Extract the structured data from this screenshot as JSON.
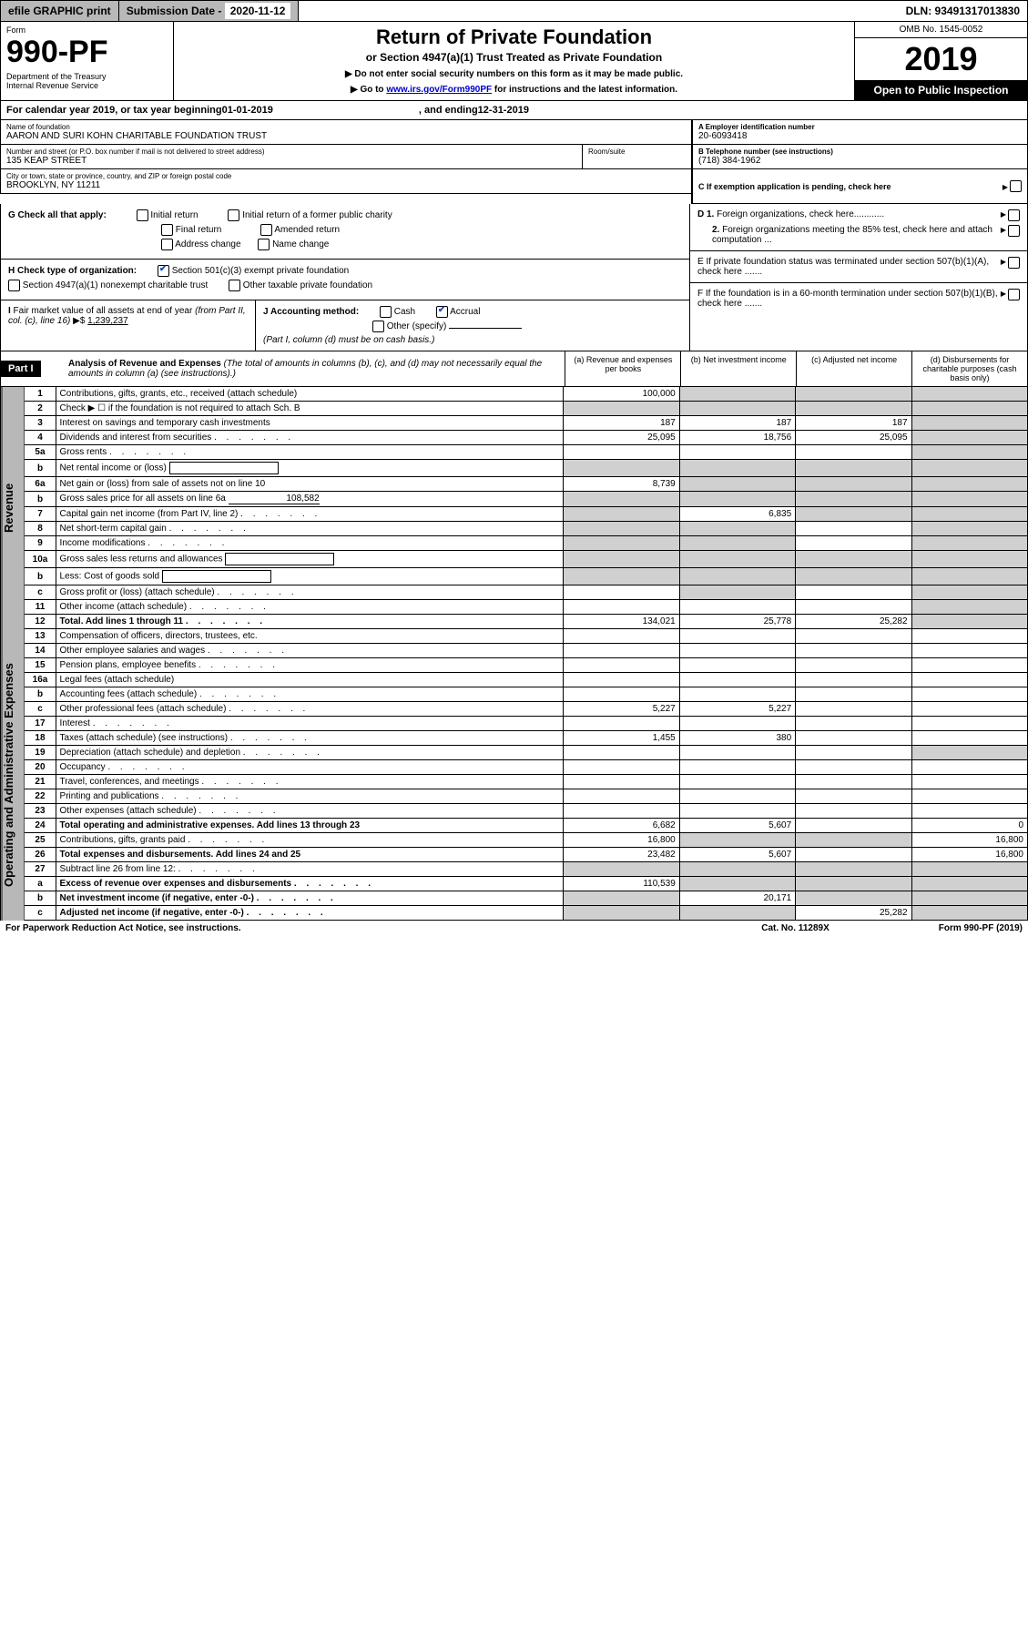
{
  "topbar": {
    "efile": "efile GRAPHIC print",
    "subdate_label": "Submission Date - ",
    "subdate": "2020-11-12",
    "dln": "DLN: 93491317013830"
  },
  "header": {
    "form_label": "Form",
    "form_number": "990-PF",
    "dept": "Department of the Treasury\nInternal Revenue Service",
    "title": "Return of Private Foundation",
    "subtitle": "or Section 4947(a)(1) Trust Treated as Private Foundation",
    "instr1": "▶ Do not enter social security numbers on this form as it may be made public.",
    "instr2_pre": "▶ Go to ",
    "instr2_link": "www.irs.gov/Form990PF",
    "instr2_post": " for instructions and the latest information.",
    "omb": "OMB No. 1545-0052",
    "year": "2019",
    "open": "Open to Public Inspection"
  },
  "calyear": {
    "pre": "For calendar year 2019, or tax year beginning ",
    "begin": "01-01-2019",
    "mid": ", and ending ",
    "end": "12-31-2019"
  },
  "ident": {
    "name_label": "Name of foundation",
    "name": "AARON AND SURI KOHN CHARITABLE FOUNDATION TRUST",
    "addr_label": "Number and street (or P.O. box number if mail is not delivered to street address)",
    "addr": "135 KEAP STREET",
    "room_label": "Room/suite",
    "city_label": "City or town, state or province, country, and ZIP or foreign postal code",
    "city": "BROOKLYN, NY  11211",
    "ein_label": "A Employer identification number",
    "ein": "20-6093418",
    "tel_label": "B Telephone number (see instructions)",
    "tel": "(718) 384-1962",
    "c_label": "C If exemption application is pending, check here"
  },
  "g": {
    "label": "G Check all that apply:",
    "initial": "Initial return",
    "initial_former": "Initial return of a former public charity",
    "final": "Final return",
    "amended": "Amended return",
    "addr_change": "Address change",
    "name_change": "Name change"
  },
  "h": {
    "label": "H Check type of organization:",
    "s501c3": "Section 501(c)(3) exempt private foundation",
    "s4947": "Section 4947(a)(1) nonexempt charitable trust",
    "other_tax": "Other taxable private foundation"
  },
  "d": {
    "d1": "D 1. Foreign organizations, check here............",
    "d2": "2. Foreign organizations meeting the 85% test, check here and attach computation ..."
  },
  "e": "E  If private foundation status was terminated under section 507(b)(1)(A), check here .......",
  "i": {
    "label": "I Fair market value of all assets at end of year (from Part II, col. (c), line 16) ▶$ ",
    "value": "1,239,237"
  },
  "j": {
    "label": "J Accounting method:",
    "cash": "Cash",
    "accrual": "Accrual",
    "other": "Other (specify)",
    "note": "(Part I, column (d) must be on cash basis.)"
  },
  "f": "F  If the foundation is in a 60-month termination under section 507(b)(1)(B), check here .......",
  "part1": {
    "label": "Part I",
    "title": "Analysis of Revenue and Expenses",
    "note": "(The total of amounts in columns (b), (c), and (d) may not necessarily equal the amounts in column (a) (see instructions).)",
    "col_a": "(a)   Revenue and expenses per books",
    "col_b": "(b)  Net investment income",
    "col_c": "(c)  Adjusted net income",
    "col_d": "(d)  Disbursements for charitable purposes (cash basis only)"
  },
  "side_rev": "Revenue",
  "side_exp": "Operating and Administrative Expenses",
  "rows": [
    {
      "ln": "1",
      "desc": "Contributions, gifts, grants, etc., received (attach schedule)",
      "a": "100,000",
      "b": "",
      "c": "",
      "d": "",
      "shade": [
        "b",
        "c",
        "d"
      ]
    },
    {
      "ln": "2",
      "desc": "Check ▶ ☐ if the foundation is not required to attach Sch. B",
      "a": "",
      "b": "",
      "c": "",
      "d": "",
      "shade": [
        "a",
        "b",
        "c",
        "d"
      ],
      "bold_not": true
    },
    {
      "ln": "3",
      "desc": "Interest on savings and temporary cash investments",
      "a": "187",
      "b": "187",
      "c": "187",
      "d": "",
      "shade": [
        "d"
      ]
    },
    {
      "ln": "4",
      "desc": "Dividends and interest from securities",
      "a": "25,095",
      "b": "18,756",
      "c": "25,095",
      "d": "",
      "shade": [
        "d"
      ]
    },
    {
      "ln": "5a",
      "desc": "Gross rents",
      "a": "",
      "b": "",
      "c": "",
      "d": "",
      "shade": [
        "d"
      ]
    },
    {
      "ln": "b",
      "desc": "Net rental income or (loss)",
      "a": "",
      "b": "",
      "c": "",
      "d": "",
      "shade": [
        "a",
        "b",
        "c",
        "d"
      ],
      "inline_input": true
    },
    {
      "ln": "6a",
      "desc": "Net gain or (loss) from sale of assets not on line 10",
      "a": "8,739",
      "b": "",
      "c": "",
      "d": "",
      "shade": [
        "b",
        "c",
        "d"
      ]
    },
    {
      "ln": "b",
      "desc": "Gross sales price for all assets on line 6a",
      "a": "",
      "b": "",
      "c": "",
      "d": "",
      "shade": [
        "a",
        "b",
        "c",
        "d"
      ],
      "inline_val": "108,582"
    },
    {
      "ln": "7",
      "desc": "Capital gain net income (from Part IV, line 2)",
      "a": "",
      "b": "6,835",
      "c": "",
      "d": "",
      "shade": [
        "a",
        "c",
        "d"
      ]
    },
    {
      "ln": "8",
      "desc": "Net short-term capital gain",
      "a": "",
      "b": "",
      "c": "",
      "d": "",
      "shade": [
        "a",
        "b",
        "d"
      ]
    },
    {
      "ln": "9",
      "desc": "Income modifications",
      "a": "",
      "b": "",
      "c": "",
      "d": "",
      "shade": [
        "a",
        "b",
        "d"
      ]
    },
    {
      "ln": "10a",
      "desc": "Gross sales less returns and allowances",
      "a": "",
      "b": "",
      "c": "",
      "d": "",
      "shade": [
        "a",
        "b",
        "c",
        "d"
      ],
      "inline_input": true
    },
    {
      "ln": "b",
      "desc": "Less: Cost of goods sold",
      "a": "",
      "b": "",
      "c": "",
      "d": "",
      "shade": [
        "a",
        "b",
        "c",
        "d"
      ],
      "inline_input": true
    },
    {
      "ln": "c",
      "desc": "Gross profit or (loss) (attach schedule)",
      "a": "",
      "b": "",
      "c": "",
      "d": "",
      "shade": [
        "b",
        "d"
      ]
    },
    {
      "ln": "11",
      "desc": "Other income (attach schedule)",
      "a": "",
      "b": "",
      "c": "",
      "d": "",
      "shade": [
        "d"
      ]
    },
    {
      "ln": "12",
      "desc": "Total. Add lines 1 through 11",
      "a": "134,021",
      "b": "25,778",
      "c": "25,282",
      "d": "",
      "bold": true,
      "shade": [
        "d"
      ]
    }
  ],
  "rows_exp": [
    {
      "ln": "13",
      "desc": "Compensation of officers, directors, trustees, etc.",
      "a": "",
      "b": "",
      "c": "",
      "d": ""
    },
    {
      "ln": "14",
      "desc": "Other employee salaries and wages",
      "a": "",
      "b": "",
      "c": "",
      "d": ""
    },
    {
      "ln": "15",
      "desc": "Pension plans, employee benefits",
      "a": "",
      "b": "",
      "c": "",
      "d": ""
    },
    {
      "ln": "16a",
      "desc": "Legal fees (attach schedule)",
      "a": "",
      "b": "",
      "c": "",
      "d": ""
    },
    {
      "ln": "b",
      "desc": "Accounting fees (attach schedule)",
      "a": "",
      "b": "",
      "c": "",
      "d": ""
    },
    {
      "ln": "c",
      "desc": "Other professional fees (attach schedule)",
      "a": "5,227",
      "b": "5,227",
      "c": "",
      "d": ""
    },
    {
      "ln": "17",
      "desc": "Interest",
      "a": "",
      "b": "",
      "c": "",
      "d": ""
    },
    {
      "ln": "18",
      "desc": "Taxes (attach schedule) (see instructions)",
      "a": "1,455",
      "b": "380",
      "c": "",
      "d": ""
    },
    {
      "ln": "19",
      "desc": "Depreciation (attach schedule) and depletion",
      "a": "",
      "b": "",
      "c": "",
      "d": "",
      "shade": [
        "d"
      ]
    },
    {
      "ln": "20",
      "desc": "Occupancy",
      "a": "",
      "b": "",
      "c": "",
      "d": ""
    },
    {
      "ln": "21",
      "desc": "Travel, conferences, and meetings",
      "a": "",
      "b": "",
      "c": "",
      "d": ""
    },
    {
      "ln": "22",
      "desc": "Printing and publications",
      "a": "",
      "b": "",
      "c": "",
      "d": ""
    },
    {
      "ln": "23",
      "desc": "Other expenses (attach schedule)",
      "a": "",
      "b": "",
      "c": "",
      "d": ""
    },
    {
      "ln": "24",
      "desc": "Total operating and administrative expenses. Add lines 13 through 23",
      "a": "6,682",
      "b": "5,607",
      "c": "",
      "d": "0",
      "bold": true
    },
    {
      "ln": "25",
      "desc": "Contributions, gifts, grants paid",
      "a": "16,800",
      "b": "",
      "c": "",
      "d": "16,800",
      "shade": [
        "b",
        "c"
      ]
    },
    {
      "ln": "26",
      "desc": "Total expenses and disbursements. Add lines 24 and 25",
      "a": "23,482",
      "b": "5,607",
      "c": "",
      "d": "16,800",
      "bold": true
    },
    {
      "ln": "27",
      "desc": "Subtract line 26 from line 12:",
      "a": "",
      "b": "",
      "c": "",
      "d": "",
      "shade": [
        "a",
        "b",
        "c",
        "d"
      ]
    },
    {
      "ln": "a",
      "desc": "Excess of revenue over expenses and disbursements",
      "a": "110,539",
      "b": "",
      "c": "",
      "d": "",
      "bold": true,
      "shade": [
        "b",
        "c",
        "d"
      ]
    },
    {
      "ln": "b",
      "desc": "Net investment income (if negative, enter -0-)",
      "a": "",
      "b": "20,171",
      "c": "",
      "d": "",
      "bold": true,
      "shade": [
        "a",
        "c",
        "d"
      ]
    },
    {
      "ln": "c",
      "desc": "Adjusted net income (if negative, enter -0-)",
      "a": "",
      "b": "",
      "c": "25,282",
      "d": "",
      "bold": true,
      "shade": [
        "a",
        "b",
        "d"
      ]
    }
  ],
  "footer": {
    "left": "For Paperwork Reduction Act Notice, see instructions.",
    "center": "Cat. No. 11289X",
    "right": "Form 990-PF (2019)"
  }
}
